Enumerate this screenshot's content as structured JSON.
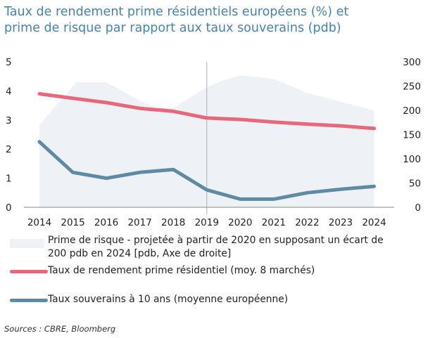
{
  "title_lines": [
    "Taux de rendement prime résidentiels européens (%) et",
    "prime de risque par rapport aux taux souverains (pdb)"
  ],
  "source": "Sources : CBRE, Bloomberg",
  "legend": {
    "risk_premium": [
      "Prime de risque - projetée à partir de 2020 en supposant un écart de",
      "200 pdb en 2024 [pdb, Axe de droite]"
    ],
    "prime_yield": "Taux de rendement prime résidentiel (moy. 8 marchés)",
    "sovereign": "Taux souverains à 10 ans (moyenne européenne)"
  },
  "colors": {
    "title": "#4a83a8",
    "prime_yield": "#e8677a",
    "sovereign": "#5f8aa3",
    "risk_premium_area": "#eef2f6",
    "divider": "#bbbbbb",
    "axis": "#888888"
  },
  "chart_data": {
    "type": "line",
    "x": [
      "2014",
      "2015",
      "2016",
      "2017",
      "2018",
      "2019",
      "2020",
      "2021",
      "2022",
      "2023",
      "2024"
    ],
    "y_left_lim": [
      0,
      5
    ],
    "y_left_ticks": [
      "0",
      "1",
      "2",
      "3",
      "4",
      "5"
    ],
    "y_right_lim": [
      0,
      300
    ],
    "y_right_ticks": [
      "0",
      "50",
      "100",
      "150",
      "200",
      "250",
      "300"
    ],
    "projection_start": "2019",
    "series": [
      {
        "name": "Prime de risque - projetée à partir de 2020 en supposant un écart de 200 pdb en 2024 [pdb, Axe de droite]",
        "type": "area",
        "axis": "right",
        "x": [
          2014,
          2014.75,
          2015.1,
          2015.5,
          2016,
          2017,
          2017.5,
          2018,
          2019,
          2019.5,
          2020,
          2021,
          2022,
          2023,
          2024
        ],
        "values": [
          170,
          230,
          258,
          258,
          258,
          220,
          206,
          205,
          248,
          262,
          272,
          265,
          236,
          218,
          200
        ]
      },
      {
        "name": "Taux de rendement prime résidentiel (moy. 8 marchés)",
        "axis": "left",
        "values": [
          3.9,
          3.75,
          3.6,
          3.4,
          3.3,
          3.07,
          3.02,
          2.93,
          2.86,
          2.8,
          2.71
        ]
      },
      {
        "name": "Taux souverains à 10 ans (moyenne européenne)",
        "axis": "left",
        "values": [
          2.25,
          1.2,
          1.0,
          1.2,
          1.3,
          0.6,
          0.28,
          0.28,
          0.5,
          0.62,
          0.72
        ]
      }
    ],
    "grid": false
  }
}
